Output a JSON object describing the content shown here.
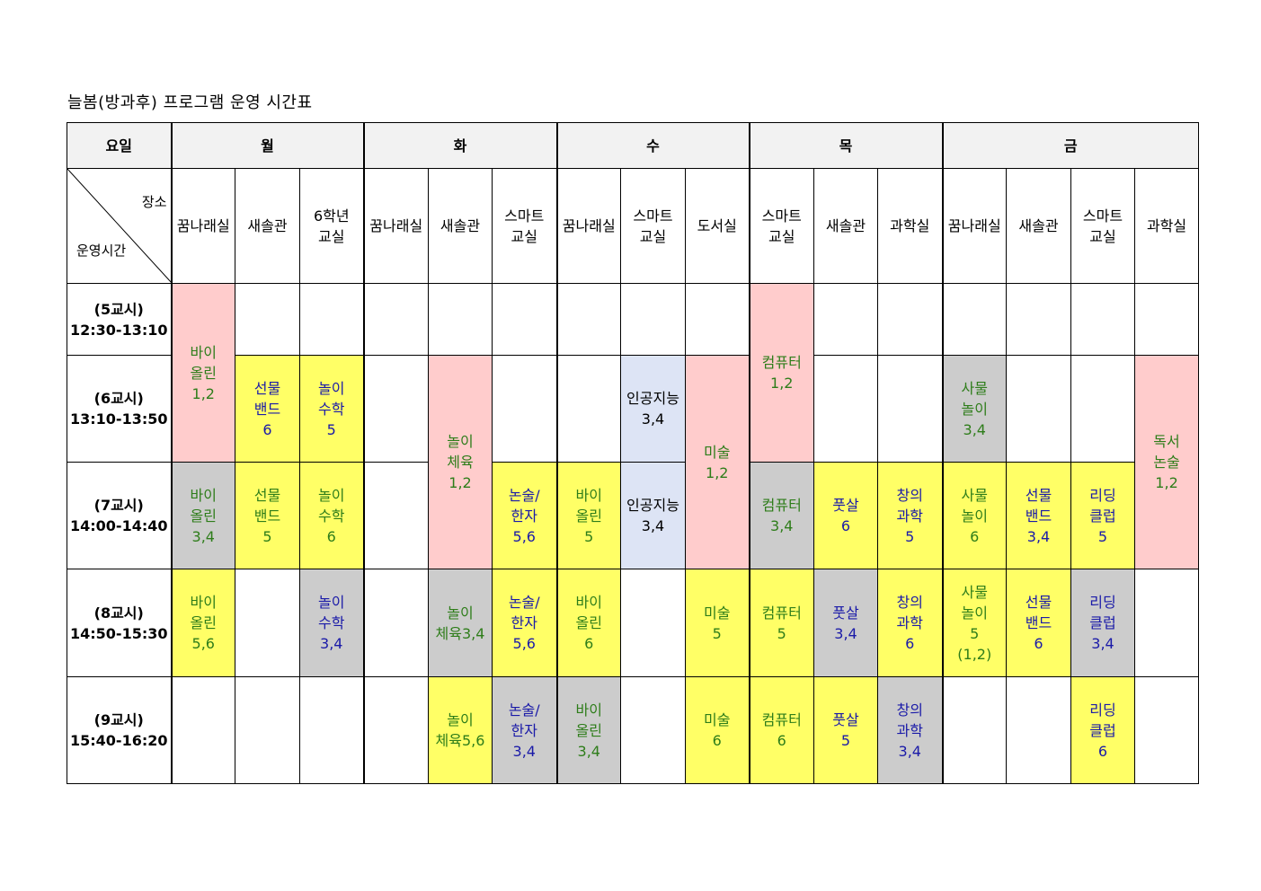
{
  "title": "늘봄(방과후) 프로그램 운영 시간표",
  "header": {
    "weekday_label": "요일",
    "place_label": "장소",
    "time_label": "운영시간",
    "days": [
      "월",
      "화",
      "수",
      "목",
      "금"
    ]
  },
  "rooms": {
    "mon": [
      [
        "꿈나래실"
      ],
      [
        "새솔관"
      ],
      [
        "6학년",
        "교실"
      ]
    ],
    "tue": [
      [
        "꿈나래실"
      ],
      [
        "새솔관"
      ],
      [
        "스마트",
        "교실"
      ]
    ],
    "wed": [
      [
        "꿈나래실"
      ],
      [
        "스마트",
        "교실"
      ],
      [
        "도서실"
      ]
    ],
    "thu": [
      [
        "스마트",
        "교실"
      ],
      [
        "새솔관"
      ],
      [
        "과학실"
      ]
    ],
    "fri": [
      [
        "꿈나래실"
      ],
      [
        "새솔관"
      ],
      [
        "스마트",
        "교실"
      ],
      [
        "과학실"
      ]
    ]
  },
  "periods": [
    {
      "name": "(5교시)",
      "time": "12:30-13:10"
    },
    {
      "name": "(6교시)",
      "time": "13:10-13:50"
    },
    {
      "name": "(7교시)",
      "time": "14:00-14:40"
    },
    {
      "name": "(8교시)",
      "time": "14:50-15:30"
    },
    {
      "name": "(9교시)",
      "time": "15:40-16:20"
    }
  ],
  "programs": {
    "mon_violin_12": [
      "바이",
      "올린",
      "1,2"
    ],
    "mon_gift_band_6": [
      "선물",
      "밴드",
      "6"
    ],
    "mon_play_math_5": [
      "놀이",
      "수학",
      "5"
    ],
    "mon_violin_34": [
      "바이",
      "올린",
      "3,4"
    ],
    "mon_gift_band_5": [
      "선물",
      "밴드",
      "5"
    ],
    "mon_play_math_6": [
      "놀이",
      "수학",
      "6"
    ],
    "mon_violin_56": [
      "바이",
      "올린",
      "5,6"
    ],
    "mon_play_math_34": [
      "놀이",
      "수학",
      "3,4"
    ],
    "tue_play_pe_12": [
      "놀이",
      "체육",
      "1,2"
    ],
    "tue_essay_hanja_56_a": [
      "논술/",
      "한자",
      "5,6"
    ],
    "tue_play_pe_34": [
      "놀이",
      "체육3,4"
    ],
    "tue_essay_hanja_56_b": [
      "논술/",
      "한자",
      "5,6"
    ],
    "tue_play_pe_56": [
      "놀이",
      "체육5,6"
    ],
    "tue_essay_hanja_34": [
      "논술/",
      "한자",
      "3,4"
    ],
    "wed_ai_34_a": [
      "인공지능",
      "3,4"
    ],
    "wed_art_12": [
      "미술",
      "1,2"
    ],
    "wed_violin_5": [
      "바이",
      "올린",
      "5"
    ],
    "wed_ai_34_b": [
      "인공지능",
      "3,4"
    ],
    "wed_violin_6": [
      "바이",
      "올린",
      "6"
    ],
    "wed_art_5": [
      "미술",
      "5"
    ],
    "wed_violin_34": [
      "바이",
      "올린",
      "3,4"
    ],
    "wed_art_6": [
      "미술",
      "6"
    ],
    "thu_computer_12": [
      "컴퓨터",
      "1,2"
    ],
    "thu_computer_34": [
      "컴퓨터",
      "3,4"
    ],
    "thu_futsal_6": [
      "풋살",
      "6"
    ],
    "thu_creative_sci_5": [
      "창의",
      "과학",
      "5"
    ],
    "thu_computer_5": [
      "컴퓨터",
      "5"
    ],
    "thu_futsal_34": [
      "풋살",
      "3,4"
    ],
    "thu_creative_sci_6": [
      "창의",
      "과학",
      "6"
    ],
    "thu_computer_6": [
      "컴퓨터",
      "6"
    ],
    "thu_futsal_5": [
      "풋살",
      "5"
    ],
    "thu_creative_sci_34": [
      "창의",
      "과학",
      "3,4"
    ],
    "fri_iot_play_34": [
      "사물",
      "놀이",
      "3,4"
    ],
    "fri_reading_essay_12": [
      "독서",
      "논술",
      "1,2"
    ],
    "fri_iot_play_6": [
      "사물",
      "놀이",
      "6"
    ],
    "fri_gift_band_34": [
      "선물",
      "밴드",
      "3,4"
    ],
    "fri_reading_club_5": [
      "리딩",
      "클럽",
      "5"
    ],
    "fri_iot_play_5": [
      "사물",
      "놀이",
      "5",
      "(1,2)"
    ],
    "fri_gift_band_6": [
      "선물",
      "밴드",
      "6"
    ],
    "fri_reading_club_34": [
      "리딩",
      "클럽",
      "3,4"
    ],
    "fri_reading_club_6": [
      "리딩",
      "클럽",
      "6"
    ]
  },
  "colors": {
    "yellow": "#ffff66",
    "pink": "#ffcccc",
    "gray": "#cccccc",
    "lavender": "#dde4f5",
    "green_text": "#2e7d1a",
    "blue_text": "#1a1aa8"
  }
}
